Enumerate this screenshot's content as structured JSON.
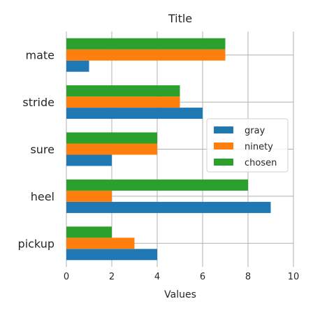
{
  "chart_data": {
    "type": "bar",
    "orientation": "horizontal",
    "title": "Title",
    "xlabel": "Values",
    "ylabel": "",
    "xlim": [
      0,
      10
    ],
    "xticks": [
      0,
      2,
      4,
      6,
      8,
      10
    ],
    "grid": true,
    "legend_position": "right",
    "categories": [
      "mate",
      "stride",
      "sure",
      "heel",
      "pickup"
    ],
    "series": [
      {
        "name": "gray",
        "color": "#1f77b4",
        "values": [
          1,
          6,
          2,
          9,
          4
        ]
      },
      {
        "name": "ninety",
        "color": "#ff7f0e",
        "values": [
          7,
          5,
          4,
          2,
          3
        ]
      },
      {
        "name": "chosen",
        "color": "#2ca02c",
        "values": [
          7,
          5,
          4,
          8,
          2
        ]
      }
    ]
  }
}
